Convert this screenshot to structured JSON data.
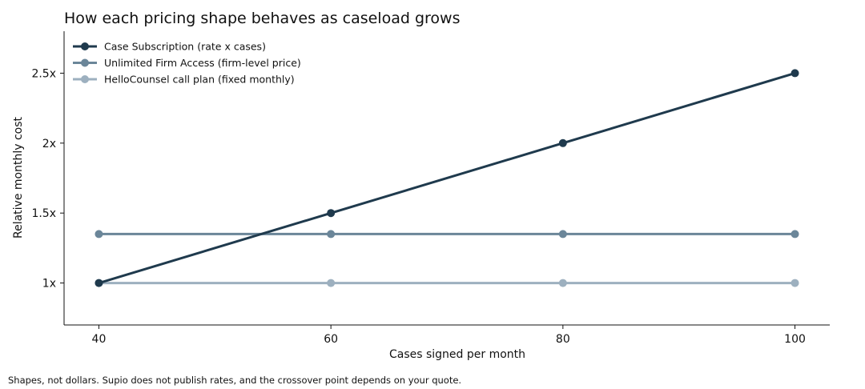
{
  "chart_data": {
    "type": "line",
    "title": "How each pricing shape behaves as caseload grows",
    "xlabel": "Cases signed per month",
    "ylabel": "Relative monthly cost",
    "x": [
      40,
      60,
      80,
      100
    ],
    "x_tick_labels": [
      "40",
      "60",
      "80",
      "100"
    ],
    "xlim": [
      37,
      103
    ],
    "y_ticks": [
      1,
      1.5,
      2,
      2.5
    ],
    "y_tick_labels": [
      "1x",
      "1.5x",
      "2x",
      "2.5x"
    ],
    "ylim": [
      0.7,
      2.8
    ],
    "grid": false,
    "legend_position": "top-left",
    "series": [
      {
        "name": "Case Subscription (rate x cases)",
        "values": [
          1.0,
          1.5,
          2.0,
          2.5
        ],
        "color": "#1f3a4d"
      },
      {
        "name": "Unlimited Firm Access (firm-level price)",
        "values": [
          1.35,
          1.35,
          1.35,
          1.35
        ],
        "color": "#6b8699"
      },
      {
        "name": "HelloCounsel call plan (fixed monthly)",
        "values": [
          1.0,
          1.0,
          1.0,
          1.0
        ],
        "color": "#9db0bf"
      }
    ]
  },
  "footnote": "Shapes, not dollars. Supio does not publish rates, and the crossover point depends on your quote."
}
